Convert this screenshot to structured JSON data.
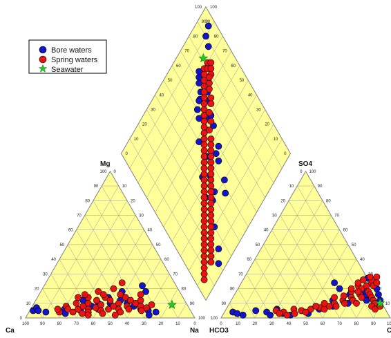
{
  "chart_data": {
    "type": "scatter",
    "subtype": "piper-diagram",
    "legend": {
      "placement": "top-left",
      "entries": [
        {
          "name": "Bore waters",
          "color": "#1414c8",
          "marker": "circle"
        },
        {
          "name": "Spring waters",
          "color": "#e81414",
          "marker": "circle"
        },
        {
          "name": "Seawater",
          "color": "#22cc22",
          "marker": "star"
        }
      ]
    },
    "colors": {
      "fill": "#ffff99",
      "grid": "#9a9a9a",
      "border": "#808080"
    },
    "axis_labels": {
      "cation_left": "Ca",
      "cation_top": "Mg",
      "cation_right": "Na",
      "anion_left": "HCO3",
      "anion_top": "SO4",
      "anion_right": "Cl"
    },
    "tick_labels": [
      "0",
      "10",
      "20",
      "30",
      "40",
      "50",
      "60",
      "70",
      "80",
      "90",
      "100"
    ],
    "series": [
      {
        "name": "Bore waters",
        "cations": [
          [
            2,
            5
          ],
          [
            3,
            7
          ],
          [
            5,
            5
          ],
          [
            10,
            4
          ],
          [
            20,
            6
          ],
          [
            22,
            3
          ],
          [
            30,
            5
          ],
          [
            35,
            8
          ],
          [
            40,
            6
          ],
          [
            45,
            10
          ],
          [
            50,
            12
          ],
          [
            55,
            10
          ],
          [
            60,
            8
          ],
          [
            65,
            6
          ],
          [
            62,
            18
          ],
          [
            58,
            22
          ],
          [
            48,
            18
          ],
          [
            52,
            14
          ],
          [
            42,
            14
          ],
          [
            38,
            10
          ],
          [
            28,
            12
          ],
          [
            70,
            5
          ],
          [
            75,
            4
          ],
          [
            72,
            2
          ]
        ],
        "anions": [
          [
            5,
            4
          ],
          [
            8,
            3
          ],
          [
            12,
            2
          ],
          [
            18,
            5
          ],
          [
            25,
            4
          ],
          [
            30,
            6
          ],
          [
            35,
            3
          ],
          [
            45,
            5
          ],
          [
            55,
            6
          ],
          [
            62,
            8
          ],
          [
            70,
            10
          ],
          [
            72,
            20
          ],
          [
            75,
            18
          ],
          [
            78,
            15
          ],
          [
            80,
            12
          ],
          [
            82,
            20
          ],
          [
            85,
            16
          ],
          [
            88,
            12
          ],
          [
            68,
            16
          ],
          [
            60,
            12
          ],
          [
            40,
            2
          ],
          [
            50,
            3
          ],
          [
            28,
            2
          ],
          [
            73,
            27
          ],
          [
            78,
            25
          ],
          [
            55,
            24
          ],
          [
            60,
            20
          ]
        ],
        "diamond": [
          [
            95,
            92
          ],
          [
            88,
            85
          ],
          [
            90,
            90
          ],
          [
            60,
            45
          ],
          [
            55,
            40
          ],
          [
            52,
            30
          ],
          [
            48,
            25
          ],
          [
            60,
            70
          ],
          [
            65,
            72
          ],
          [
            70,
            78
          ],
          [
            72,
            80
          ],
          [
            74,
            82
          ],
          [
            62,
            62
          ],
          [
            50,
            48
          ],
          [
            45,
            40
          ],
          [
            42,
            32
          ],
          [
            38,
            30
          ],
          [
            35,
            35
          ],
          [
            40,
            44
          ],
          [
            50,
            58
          ],
          [
            58,
            66
          ],
          [
            64,
            72
          ],
          [
            68,
            74
          ],
          [
            20,
            5
          ],
          [
            25,
            10
          ],
          [
            30,
            20
          ],
          [
            68,
            68
          ],
          [
            70,
            72
          ],
          [
            72,
            70
          ],
          [
            74,
            74
          ],
          [
            75,
            76
          ],
          [
            76,
            73
          ],
          [
            66,
            60
          ],
          [
            64,
            55
          ],
          [
            56,
            44
          ]
        ]
      },
      {
        "name": "Spring waters",
        "cations": [
          [
            20,
            8
          ],
          [
            22,
            6
          ],
          [
            25,
            10
          ],
          [
            26,
            4
          ],
          [
            28,
            6
          ],
          [
            30,
            8
          ],
          [
            32,
            10
          ],
          [
            34,
            6
          ],
          [
            35,
            4
          ],
          [
            38,
            7
          ],
          [
            40,
            9
          ],
          [
            42,
            5
          ],
          [
            44,
            3
          ],
          [
            46,
            6
          ],
          [
            48,
            8
          ],
          [
            50,
            10
          ],
          [
            52,
            6
          ],
          [
            54,
            4
          ],
          [
            56,
            8
          ],
          [
            58,
            6
          ],
          [
            60,
            10
          ],
          [
            62,
            12
          ],
          [
            64,
            8
          ],
          [
            66,
            5
          ],
          [
            68,
            7
          ],
          [
            70,
            9
          ],
          [
            36,
            12
          ],
          [
            40,
            14
          ],
          [
            44,
            12
          ],
          [
            48,
            16
          ],
          [
            52,
            14
          ],
          [
            56,
            12
          ],
          [
            60,
            16
          ],
          [
            30,
            14
          ],
          [
            34,
            18
          ],
          [
            38,
            16
          ],
          [
            42,
            20
          ],
          [
            45,
            24
          ],
          [
            24,
            14
          ],
          [
            27,
            16
          ],
          [
            18,
            4
          ],
          [
            16,
            6
          ],
          [
            32,
            3
          ],
          [
            36,
            2
          ],
          [
            52,
            2
          ]
        ],
        "anions": [
          [
            30,
            5
          ],
          [
            35,
            4
          ],
          [
            40,
            6
          ],
          [
            45,
            5
          ],
          [
            50,
            6
          ],
          [
            55,
            7
          ],
          [
            58,
            6
          ],
          [
            60,
            8
          ],
          [
            62,
            10
          ],
          [
            64,
            8
          ],
          [
            66,
            12
          ],
          [
            68,
            10
          ],
          [
            70,
            14
          ],
          [
            72,
            12
          ],
          [
            74,
            16
          ],
          [
            76,
            14
          ],
          [
            78,
            18
          ],
          [
            80,
            16
          ],
          [
            82,
            14
          ],
          [
            84,
            12
          ],
          [
            86,
            10
          ],
          [
            70,
            22
          ],
          [
            73,
            20
          ],
          [
            75,
            22
          ],
          [
            77,
            24
          ],
          [
            79,
            22
          ],
          [
            76,
            26
          ],
          [
            74,
            28
          ],
          [
            78,
            28
          ],
          [
            80,
            24
          ],
          [
            68,
            18
          ],
          [
            72,
            18
          ],
          [
            75,
            10
          ],
          [
            85,
            8
          ],
          [
            88,
            6
          ],
          [
            65,
            15
          ],
          [
            67,
            20
          ],
          [
            60,
            14
          ],
          [
            56,
            10
          ],
          [
            52,
            8
          ],
          [
            48,
            4
          ],
          [
            42,
            3
          ],
          [
            38,
            2
          ],
          [
            33,
            3
          ],
          [
            90,
            8
          ],
          [
            71,
            26
          ],
          [
            69,
            24
          ]
        ],
        "diamond": [
          [
            78,
            80
          ],
          [
            76,
            78
          ],
          [
            74,
            76
          ],
          [
            72,
            74
          ],
          [
            70,
            72
          ],
          [
            68,
            70
          ],
          [
            66,
            68
          ],
          [
            64,
            66
          ],
          [
            62,
            64
          ],
          [
            60,
            62
          ],
          [
            58,
            60
          ],
          [
            56,
            58
          ],
          [
            54,
            56
          ],
          [
            52,
            54
          ],
          [
            50,
            52
          ],
          [
            48,
            50
          ],
          [
            46,
            48
          ],
          [
            44,
            46
          ],
          [
            42,
            44
          ],
          [
            40,
            42
          ],
          [
            38,
            40
          ],
          [
            36,
            38
          ],
          [
            34,
            36
          ],
          [
            32,
            34
          ],
          [
            30,
            32
          ],
          [
            28,
            30
          ],
          [
            26,
            28
          ],
          [
            24,
            26
          ],
          [
            22,
            24
          ],
          [
            20,
            22
          ],
          [
            18,
            20
          ],
          [
            16,
            18
          ],
          [
            14,
            16
          ],
          [
            12,
            14
          ],
          [
            10,
            12
          ],
          [
            8,
            10
          ],
          [
            6,
            8
          ],
          [
            80,
            78
          ],
          [
            82,
            80
          ],
          [
            84,
            78
          ],
          [
            80,
            74
          ],
          [
            76,
            72
          ],
          [
            74,
            70
          ],
          [
            72,
            66
          ],
          [
            78,
            74
          ],
          [
            82,
            76
          ],
          [
            70,
            64
          ],
          [
            66,
            62
          ],
          [
            64,
            58
          ],
          [
            60,
            56
          ],
          [
            58,
            52
          ],
          [
            56,
            50
          ],
          [
            54,
            48
          ],
          [
            52,
            46
          ],
          [
            50,
            44
          ],
          [
            48,
            42
          ],
          [
            46,
            40
          ],
          [
            44,
            38
          ],
          [
            42,
            36
          ],
          [
            40,
            34
          ],
          [
            38,
            32
          ],
          [
            36,
            30
          ],
          [
            34,
            28
          ],
          [
            32,
            26
          ],
          [
            30,
            24
          ],
          [
            28,
            22
          ],
          [
            26,
            20
          ],
          [
            24,
            18
          ],
          [
            22,
            16
          ],
          [
            20,
            14
          ],
          [
            18,
            12
          ],
          [
            16,
            10
          ]
        ]
      },
      {
        "name": "Seawater",
        "cations": [
          [
            82,
            9
          ]
        ],
        "anions": [
          [
            89,
            10
          ]
        ],
        "diamond": [
          [
            81,
            84
          ]
        ]
      }
    ]
  }
}
